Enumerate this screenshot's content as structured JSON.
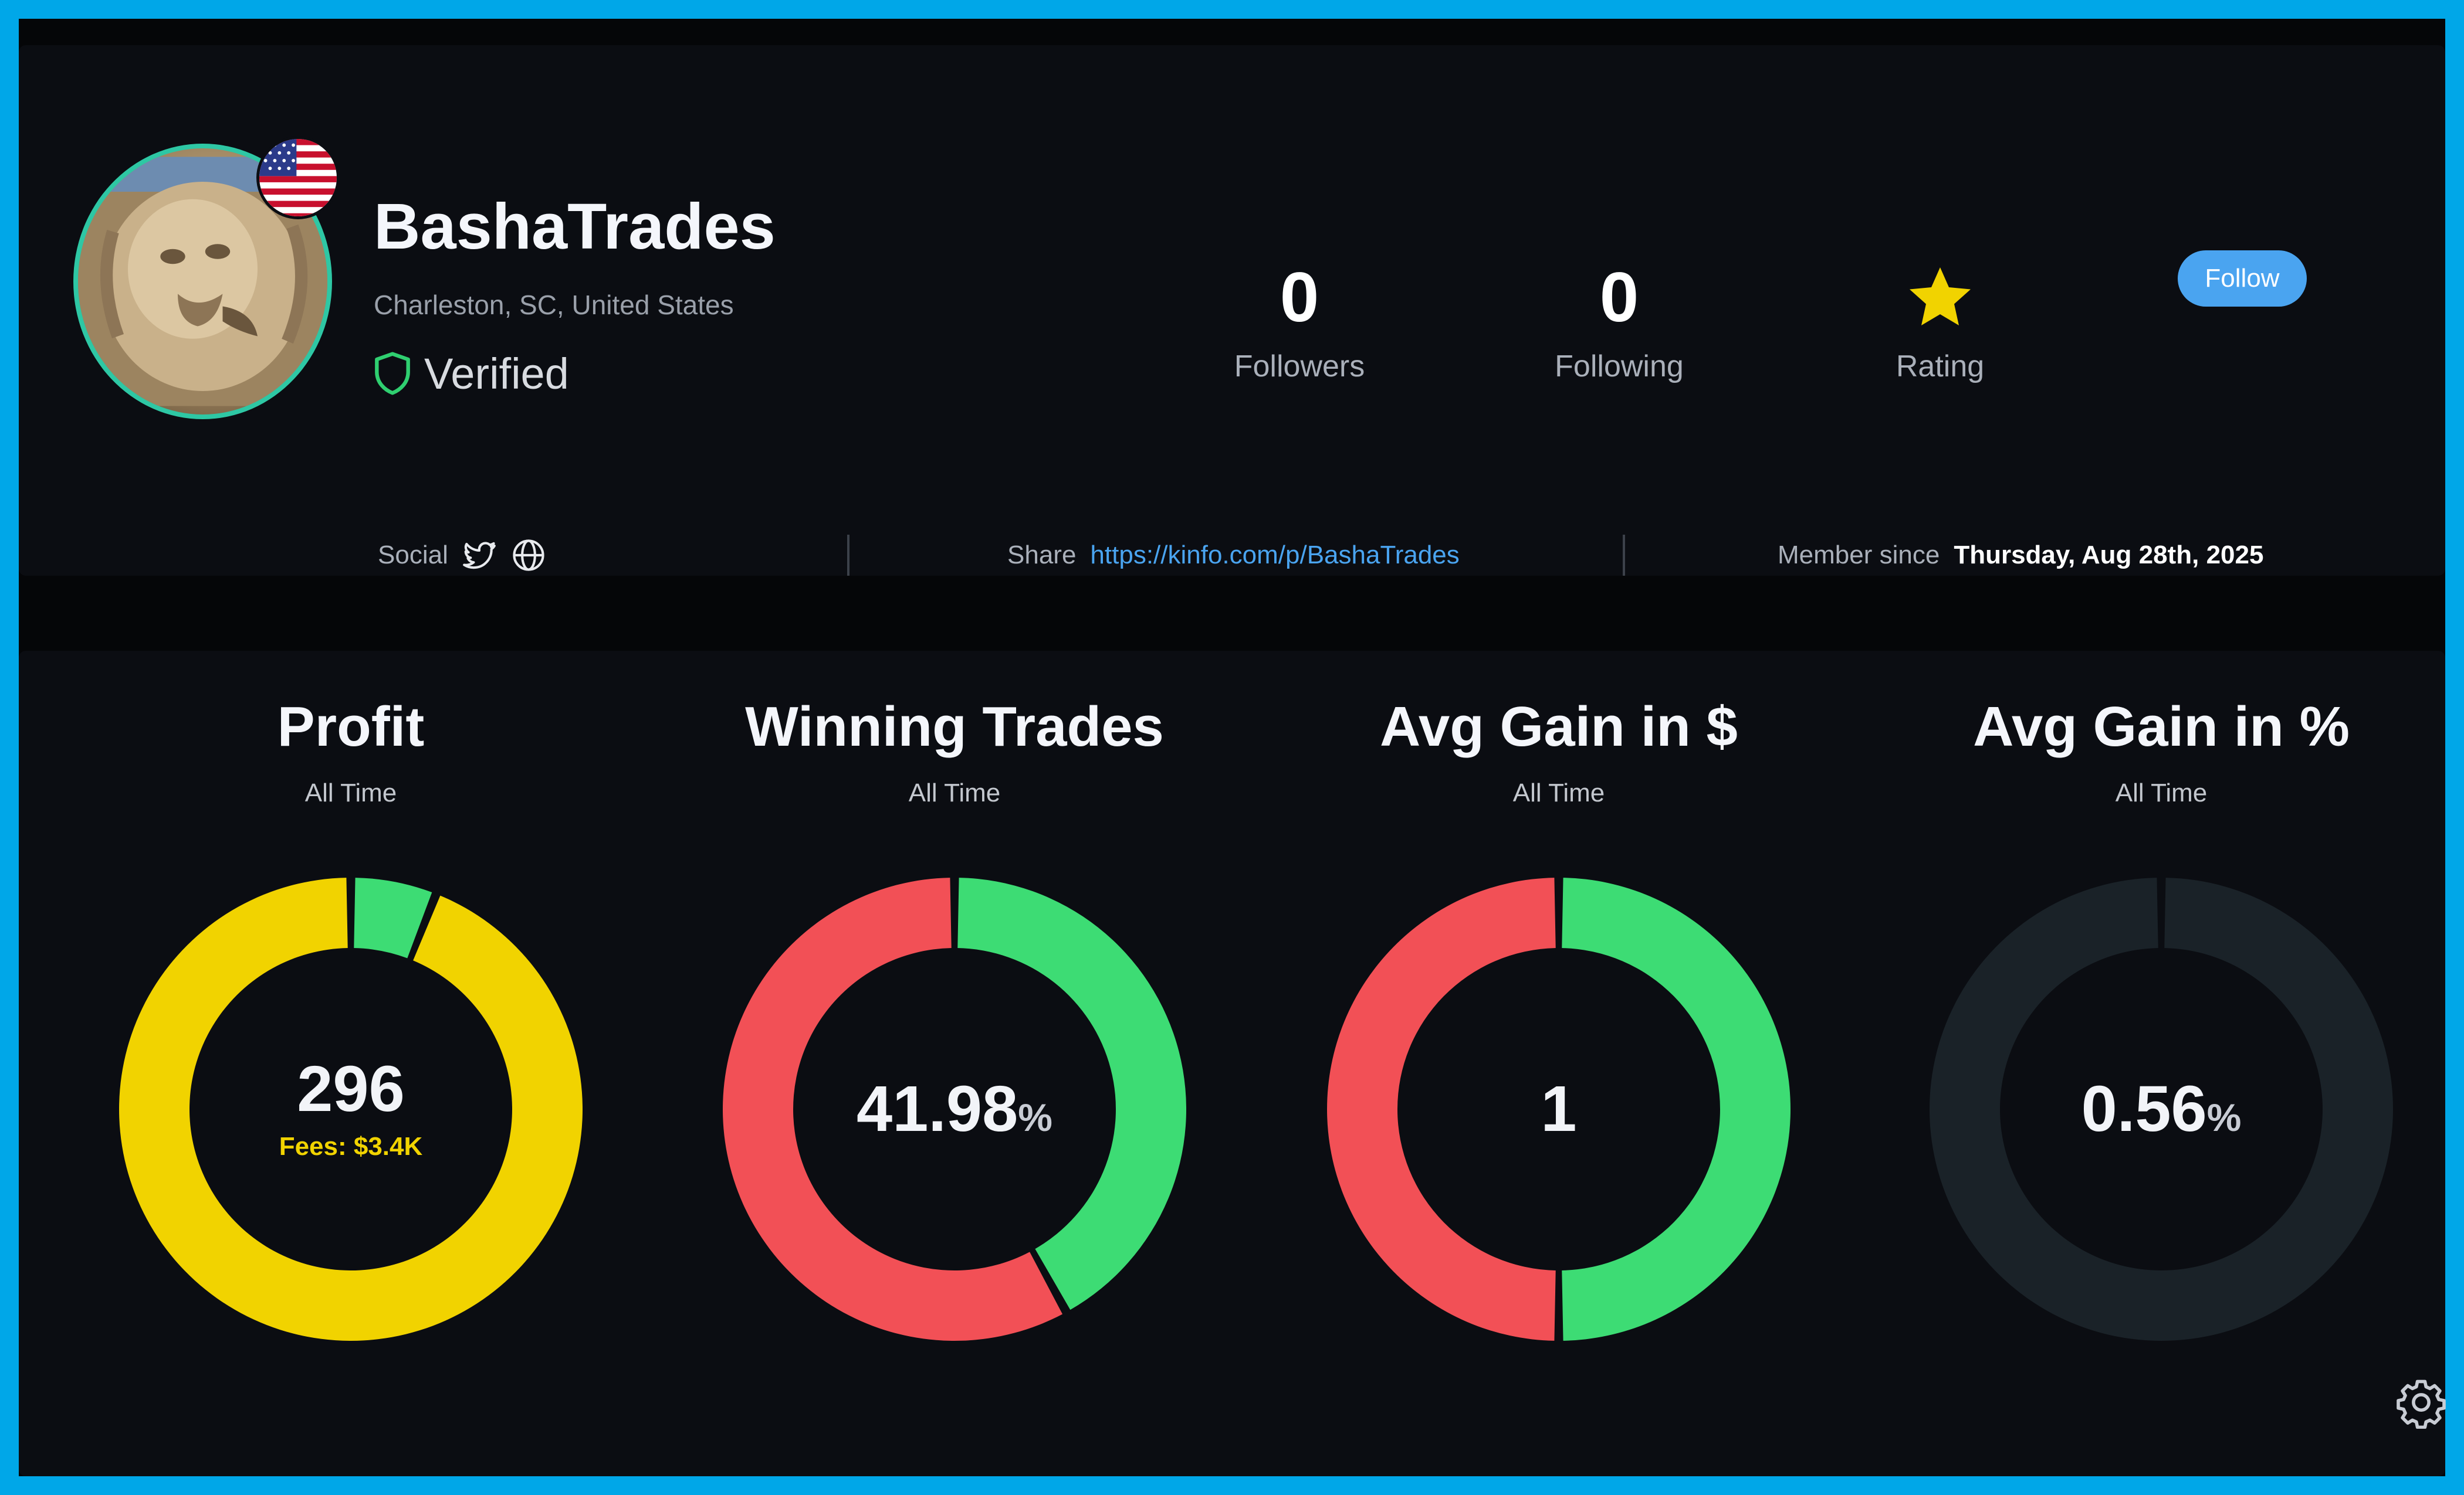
{
  "profile": {
    "username": "BashaTrades",
    "location": "Charleston, SC, United States",
    "verified_label": "Verified",
    "avatar_icon": "lion-statue-avatar",
    "flag_icon": "us-flag-icon"
  },
  "stats": {
    "followers": {
      "value": "0",
      "label": "Followers"
    },
    "following": {
      "value": "0",
      "label": "Following"
    },
    "rating": {
      "label": "Rating",
      "icon": "star-icon",
      "color": "#f1d300"
    }
  },
  "follow_button": {
    "label": "Follow",
    "color": "#4aa4f0"
  },
  "info_row": {
    "social_label": "Social",
    "social_icons": [
      "twitter-icon",
      "globe-icon"
    ],
    "share_label": "Share",
    "share_link": "https://kinfo.com/p/BashaTrades",
    "member_label": "Member since",
    "member_value": "Thursday, Aug 28th, 2025"
  },
  "metrics": [
    {
      "title": "Profit",
      "subtitle": "All Time",
      "value": "296",
      "extra": "Fees: $3.4K"
    },
    {
      "title": "Winning Trades",
      "subtitle": "All Time",
      "value": "41.98",
      "unit": "%"
    },
    {
      "title": "Avg Gain in $",
      "subtitle": "All Time",
      "value": "1"
    },
    {
      "title": "Avg Gain in %",
      "subtitle": "All Time",
      "value": "0.56",
      "unit": "%"
    }
  ],
  "chart_data": [
    {
      "type": "pie",
      "donut": true,
      "segments": [
        {
          "value": 6,
          "color": "#3ddc74"
        },
        {
          "value": 94,
          "color": "#f1d300"
        }
      ]
    },
    {
      "type": "pie",
      "donut": true,
      "segments": [
        {
          "value": 41.98,
          "color": "#3ddc74"
        },
        {
          "value": 58.02,
          "color": "#f25056"
        }
      ]
    },
    {
      "type": "pie",
      "donut": true,
      "segments": [
        {
          "value": 50,
          "color": "#3ddc74"
        },
        {
          "value": 50,
          "color": "#f25056"
        }
      ]
    },
    {
      "type": "pie",
      "donut": true,
      "segments": [
        {
          "value": 100,
          "color": "#1a2228"
        }
      ]
    }
  ],
  "settings_icon": "gear-icon"
}
